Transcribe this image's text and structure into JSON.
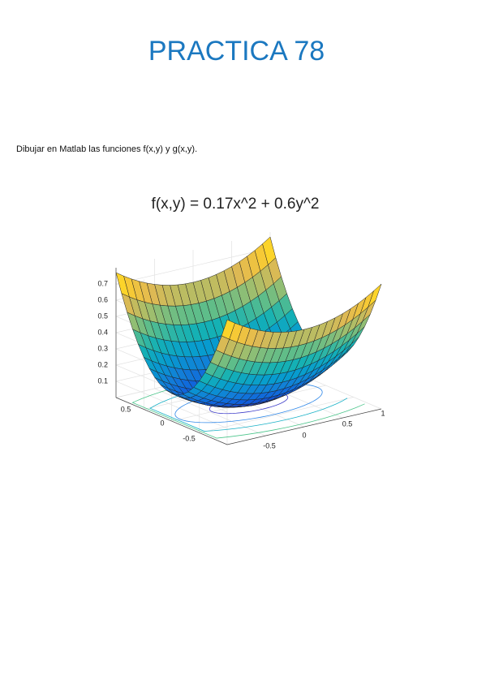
{
  "header": {
    "title": "PRACTICA 78"
  },
  "body": {
    "text": "Dibujar en Matlab las funciones f(x,y) y g(x,y)."
  },
  "figure": {
    "title": "f(x,y) = 0.17x^2 + 0.6y^2",
    "z_ticks": [
      "0.1",
      "0.2",
      "0.3",
      "0.4",
      "0.5",
      "0.6",
      "0.7"
    ],
    "y_ticks": [
      "0.5",
      "0",
      "-0.5"
    ],
    "x_ticks": [
      "-0.5",
      "0",
      "0.5",
      "1"
    ]
  }
}
